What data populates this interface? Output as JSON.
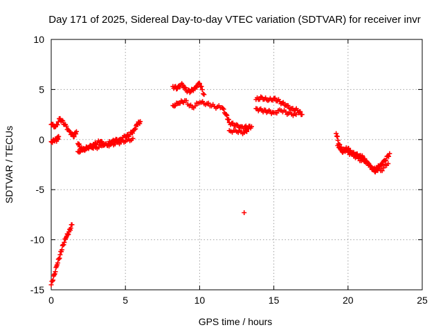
{
  "chart_data": {
    "type": "scatter",
    "title": "Day 171 of 2025, Sidereal Day-to-day VTEC variation (SDTVAR) for receiver invr",
    "xlabel": "GPS time / hours",
    "ylabel": "SDTVAR / TECUs",
    "xlim": [
      0,
      25
    ],
    "ylim": [
      -15,
      10
    ],
    "xticks": [
      0,
      5,
      10,
      15,
      20,
      25
    ],
    "xtick_labels": [
      "0",
      "5",
      "10",
      "15",
      "20",
      "25"
    ],
    "yticks": [
      -15,
      -10,
      -5,
      0,
      5,
      10
    ],
    "ytick_labels": [
      "-15",
      "-10",
      "-5",
      "0",
      "5",
      "10"
    ],
    "grid": true,
    "marker": "+",
    "series": [
      {
        "name": "SDTVAR",
        "color": "#ff0000",
        "x": [
          0.0,
          0.2,
          0.4,
          0.6,
          0.8,
          1.0,
          1.2,
          1.4,
          0.0,
          0.3,
          0.6,
          0.9,
          1.2,
          1.5,
          1.7,
          0.0,
          0.2,
          0.4,
          0.5,
          1.8,
          2.0,
          2.2,
          2.5,
          2.8,
          3.0,
          3.3,
          3.6,
          4.0,
          4.3,
          4.6,
          5.0,
          5.3,
          5.6,
          5.8,
          6.0,
          1.8,
          2.2,
          2.6,
          3.0,
          3.5,
          4.0,
          4.5,
          5.0,
          5.5,
          8.2,
          8.5,
          8.8,
          9.1,
          9.4,
          9.7,
          10.0,
          10.3,
          8.2,
          8.6,
          9.0,
          9.5,
          10.0,
          10.5,
          11.0,
          11.5,
          11.8,
          12.0,
          12.4,
          12.8,
          13.2,
          13.5,
          12.0,
          12.5,
          13.0,
          13.3,
          13.0,
          13.8,
          14.2,
          14.6,
          15.0,
          15.4,
          15.8,
          16.2,
          16.6,
          16.9,
          13.8,
          14.2,
          14.6,
          15.0,
          15.5,
          16.0,
          16.5,
          19.2,
          19.4,
          19.6,
          19.8,
          20.0,
          20.2,
          20.5,
          20.8,
          21.0,
          21.2,
          21.5,
          21.8,
          22.0,
          22.2,
          22.5,
          22.8,
          19.3,
          19.7,
          20.2,
          20.7,
          21.2,
          21.7,
          22.2,
          22.7
        ],
        "y": [
          -14.5,
          -13.5,
          -12.5,
          -11.5,
          -10.5,
          -9.8,
          -9.2,
          -8.5,
          1.5,
          1.3,
          2.1,
          1.5,
          0.9,
          0.3,
          0.8,
          -0.2,
          -0.1,
          0.0,
          0.3,
          -0.4,
          -0.9,
          -1.0,
          -0.8,
          -0.6,
          -0.4,
          -0.2,
          -0.5,
          -0.3,
          -0.1,
          0.0,
          0.3,
          0.5,
          1.0,
          1.5,
          1.8,
          -1.2,
          -1.0,
          -0.7,
          -0.8,
          -0.6,
          -0.5,
          -0.3,
          -0.2,
          0.1,
          5.3,
          5.1,
          5.6,
          4.9,
          4.8,
          5.2,
          5.6,
          4.5,
          3.4,
          3.6,
          3.9,
          3.2,
          3.7,
          3.6,
          3.3,
          3.2,
          2.5,
          1.7,
          1.4,
          1.3,
          1.2,
          1.3,
          0.9,
          0.8,
          0.7,
          1.1,
          -7.3,
          4.0,
          4.2,
          3.9,
          4.1,
          3.8,
          3.4,
          3.1,
          2.9,
          2.5,
          3.1,
          2.9,
          2.8,
          2.7,
          2.9,
          2.6,
          2.5,
          0.6,
          -0.5,
          -1.2,
          -1.0,
          -0.9,
          -1.3,
          -1.5,
          -1.6,
          -1.8,
          -2.2,
          -2.6,
          -3.2,
          -2.8,
          -2.5,
          -2.1,
          -1.4,
          -0.6,
          -1.1,
          -1.4,
          -1.9,
          -2.3,
          -2.9,
          -3.1,
          -2.4
        ]
      }
    ]
  }
}
